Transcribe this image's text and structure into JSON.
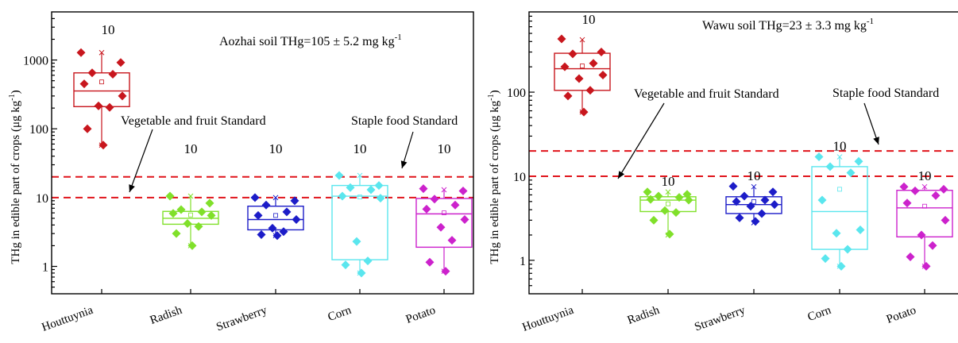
{
  "chart_data": [
    {
      "type": "box",
      "scale": "log",
      "ylabel_main": "THg in edible part of crops (μg kg",
      "ylabel_sup": "-1",
      "ylabel_end": ")",
      "ylim": [
        0.4,
        5000
      ],
      "y_ticks": [
        {
          "value": 1,
          "label": "1"
        },
        {
          "value": 10,
          "label": "10"
        },
        {
          "value": 100,
          "label": "100"
        },
        {
          "value": 1000,
          "label": "1000"
        }
      ],
      "title_main": "Aozhai soil THg=105 ± 5.2 mg kg",
      "title_sup": "-1",
      "categories": [
        "Houttuynia",
        "Radish",
        "Strawberry",
        "Corn",
        "Potato"
      ],
      "standards": [
        {
          "label": "Vegetable and fruit Standard",
          "value": 10
        },
        {
          "label": "Staple food Standard",
          "value": 20
        }
      ],
      "series": [
        {
          "category": "Houttuynia",
          "n": "10",
          "color": "#c8161d",
          "box": {
            "q1": 210,
            "median": 355,
            "q3": 650,
            "mean": 480,
            "whisker_low": 58,
            "whisker_high": 1280
          },
          "points": [
            1280,
            920,
            650,
            620,
            450,
            300,
            215,
            205,
            100,
            58
          ]
        },
        {
          "category": "Radish",
          "n": "10",
          "color": "#80e02a",
          "box": {
            "q1": 4.1,
            "median": 5.0,
            "q3": 6.3,
            "mean": 5.6,
            "whisker_low": 2.0,
            "whisker_high": 10.5
          },
          "points": [
            10.5,
            8.3,
            6.7,
            6.2,
            5.9,
            5.5,
            4.2,
            3.8,
            3.0,
            2.0
          ]
        },
        {
          "category": "Strawberry",
          "n": "10",
          "color": "#1c1cc8",
          "box": {
            "q1": 3.4,
            "median": 4.8,
            "q3": 7.5,
            "mean": 5.5,
            "whisker_low": 2.8,
            "whisker_high": 10
          },
          "points": [
            10,
            9,
            7.8,
            6.2,
            5.5,
            4.8,
            3.6,
            3.2,
            2.9,
            2.8
          ]
        },
        {
          "category": "Corn",
          "n": "10",
          "color": "#5ae6ee",
          "box": {
            "q1": 1.25,
            "median": 10.5,
            "q3": 15,
            "mean": 10.2,
            "whisker_low": 0.8,
            "whisker_high": 21
          },
          "points": [
            21,
            15,
            14,
            13,
            10.5,
            9.8,
            2.3,
            1.2,
            1.05,
            0.8
          ]
        },
        {
          "category": "Potato",
          "n": "10",
          "color": "#cc22cc",
          "box": {
            "q1": 1.9,
            "median": 5.8,
            "q3": 9.7,
            "mean": 6.0,
            "whisker_low": 0.85,
            "whisker_high": 13
          },
          "points": [
            13.5,
            12.5,
            9.5,
            7.8,
            6.8,
            4.8,
            3.7,
            2.4,
            1.15,
            0.85
          ]
        }
      ]
    },
    {
      "type": "box",
      "scale": "log",
      "ylabel_main": "THg in edible part of crops (μg kg",
      "ylabel_sup": "-1",
      "ylabel_end": ")",
      "ylim": [
        0.4,
        900
      ],
      "y_ticks": [
        {
          "value": 1,
          "label": "1"
        },
        {
          "value": 10,
          "label": "10"
        },
        {
          "value": 100,
          "label": "100"
        }
      ],
      "title_main": "Wawu soil THg=23 ± 3.3 mg kg",
      "title_sup": "-1",
      "categories": [
        "Houttuynia",
        "Radish",
        "Strawberry",
        "Corn",
        "Potato"
      ],
      "standards": [
        {
          "label": "Vegetable and fruit Standard",
          "value": 10
        },
        {
          "label": "Staple food Standard",
          "value": 20
        }
      ],
      "series": [
        {
          "category": "Houttuynia",
          "n": "10",
          "color": "#c8161d",
          "box": {
            "q1": 105,
            "median": 190,
            "q3": 290,
            "mean": 205,
            "whisker_low": 58,
            "whisker_high": 420
          },
          "points": [
            430,
            300,
            285,
            220,
            200,
            160,
            145,
            105,
            90,
            58
          ]
        },
        {
          "category": "Radish",
          "n": "10",
          "color": "#80e02a",
          "box": {
            "q1": 3.8,
            "median": 5.2,
            "q3": 5.7,
            "mean": 4.7,
            "whisker_low": 2.0,
            "whisker_high": 6.5
          },
          "points": [
            6.5,
            6.1,
            5.8,
            5.6,
            5.3,
            5.2,
            3.9,
            3.7,
            3.0,
            2.05
          ]
        },
        {
          "category": "Strawberry",
          "n": "10",
          "color": "#1c1cc8",
          "box": {
            "q1": 3.6,
            "median": 4.6,
            "q3": 5.7,
            "mean": 5.0,
            "whisker_low": 2.8,
            "whisker_high": 7.5
          },
          "points": [
            7.6,
            6.5,
            5.8,
            5.2,
            5.0,
            4.6,
            4.4,
            3.6,
            3.2,
            2.9
          ]
        },
        {
          "category": "Corn",
          "n": "10",
          "color": "#5ae6ee",
          "box": {
            "q1": 1.35,
            "median": 3.8,
            "q3": 13,
            "mean": 7.0,
            "whisker_low": 0.85,
            "whisker_high": 17
          },
          "points": [
            17,
            15,
            13,
            11,
            5.2,
            2.3,
            2.1,
            1.35,
            1.05,
            0.85
          ]
        },
        {
          "category": "Potato",
          "n": "10",
          "color": "#cc22cc",
          "box": {
            "q1": 1.9,
            "median": 4.2,
            "q3": 6.8,
            "mean": 4.4,
            "whisker_low": 0.85,
            "whisker_high": 7.5
          },
          "points": [
            7.5,
            7.0,
            6.7,
            5.9,
            4.8,
            3.0,
            2.0,
            1.5,
            1.1,
            0.85
          ]
        }
      ]
    }
  ]
}
